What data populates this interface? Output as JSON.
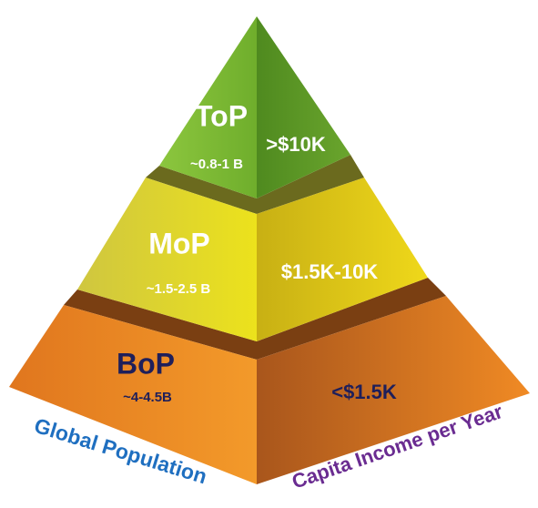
{
  "tiers": [
    {
      "name": "ToP",
      "population": "~0.8-1 B",
      "income": ">$10K"
    },
    {
      "name": "MoP",
      "population": "~1.5-2.5 B",
      "income": "$1.5K-10K"
    },
    {
      "name": "BoP",
      "population": "~4-4.5B",
      "income": "<$1.5K"
    }
  ],
  "left_label": "Global Population",
  "right_label": "Capita Income per Year"
}
